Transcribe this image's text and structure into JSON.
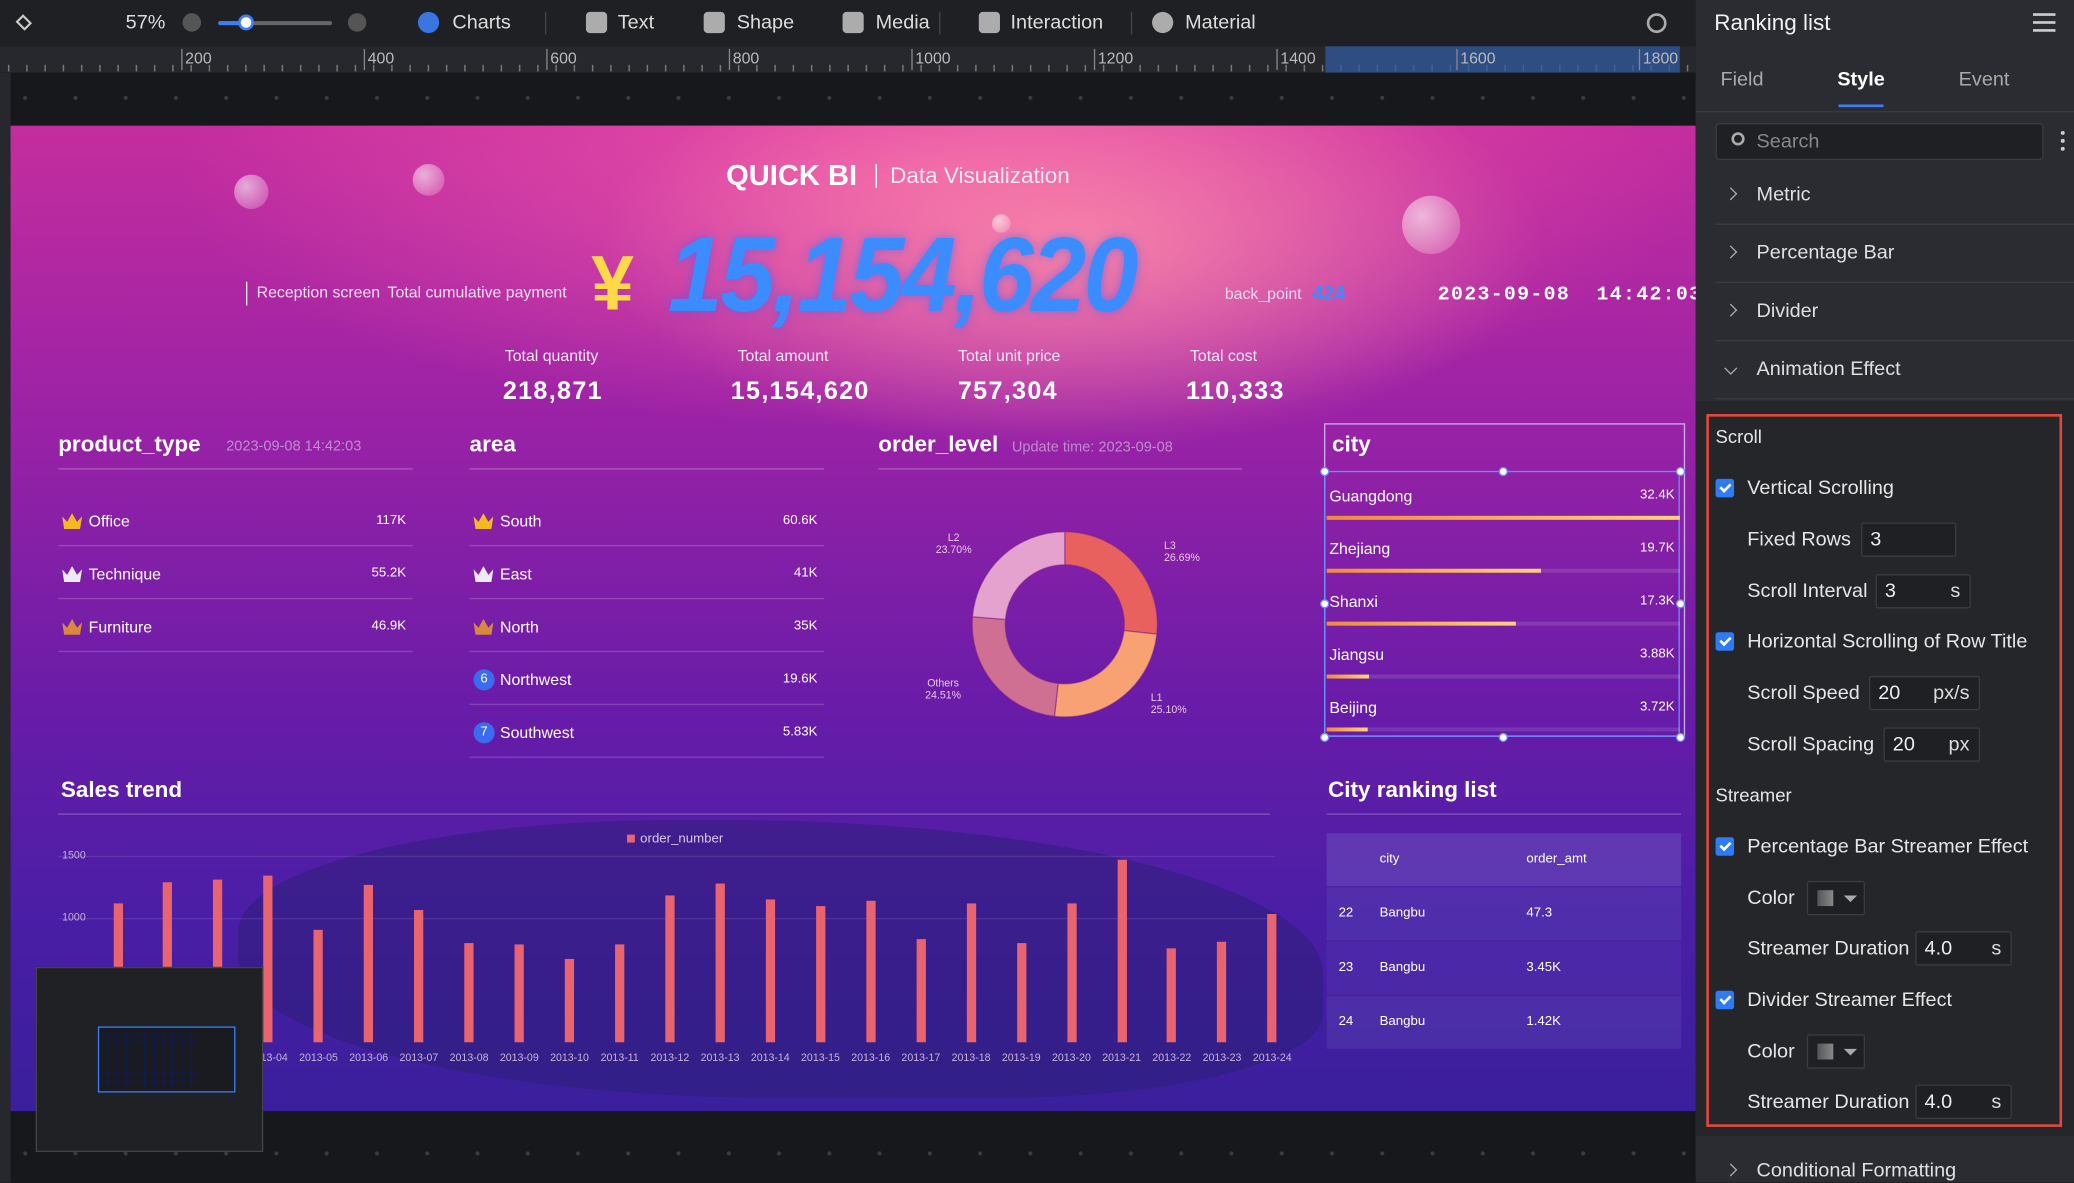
{
  "toolbar": {
    "zoom": "57%",
    "items": [
      "Charts",
      "Text",
      "Shape",
      "Media",
      "Interaction",
      "Material"
    ]
  },
  "ruler": [
    "200",
    "400",
    "600",
    "800",
    "1000",
    "1200",
    "1400",
    "1600",
    "1800"
  ],
  "dashboard": {
    "brand": "QUICK BI",
    "subtitle": "Data Visualization",
    "reception": "Reception screen",
    "payment_label": "Total cumulative payment",
    "currency": "¥",
    "payment": "15,154,620",
    "back_point": {
      "label": "back_point",
      "value": "424"
    },
    "datetime": "2023-09-08  14:42:03",
    "kpis": [
      {
        "label": "Total quantity",
        "value": "218,871"
      },
      {
        "label": "Total amount",
        "value": "15,154,620"
      },
      {
        "label": "Total unit price",
        "value": "757,304"
      },
      {
        "label": "Total cost",
        "value": "110,333"
      }
    ],
    "product_type": {
      "title": "product_type",
      "time": "2023-09-08 14:42:03",
      "rows": [
        {
          "name": "Office",
          "value": "117K"
        },
        {
          "name": "Technique",
          "value": "55.2K"
        },
        {
          "name": "Furniture",
          "value": "46.9K"
        }
      ]
    },
    "area": {
      "title": "area",
      "rows": [
        {
          "name": "South",
          "value": "60.6K"
        },
        {
          "name": "East",
          "value": "41K"
        },
        {
          "name": "North",
          "value": "35K"
        },
        {
          "rank": "6",
          "name": "Northwest",
          "value": "19.6K"
        },
        {
          "rank": "7",
          "name": "Southwest",
          "value": "5.83K"
        }
      ]
    },
    "order_level": {
      "title": "order_level",
      "update": "Update time: 2023-09-08",
      "segments": [
        {
          "name": "L3",
          "value": 26.69,
          "value_label": "26.69%",
          "color": "#e8615f"
        },
        {
          "name": "L1",
          "value": 25.1,
          "value_label": "25.10%",
          "color": "#f8a274"
        },
        {
          "name": "Others",
          "value": 24.51,
          "value_label": "24.51%",
          "color": "#cf6f92"
        },
        {
          "name": "L2",
          "value": 23.7,
          "value_label": "23.70%",
          "color": "#e6a2cf"
        }
      ]
    },
    "city": {
      "title": "city",
      "rows": [
        {
          "name": "Guangdong",
          "value": 32400,
          "value_label": "32.4K"
        },
        {
          "name": "Zhejiang",
          "value": 19700,
          "value_label": "19.7K"
        },
        {
          "name": "Shanxi",
          "value": 17300,
          "value_label": "17.3K"
        },
        {
          "name": "Jiangsu",
          "value": 3880,
          "value_label": "3.88K"
        },
        {
          "name": "Beijing",
          "value": 3720,
          "value_label": "3.72K"
        }
      ]
    },
    "sales_trend": {
      "title": "Sales trend",
      "legend": "order_number",
      "color": "#e8646e",
      "categories": [
        null,
        null,
        null,
        "2013-04",
        "2013-05",
        "2013-06",
        "2013-07",
        "2013-08",
        "2013-09",
        "2013-10",
        "2013-11",
        "2013-12",
        "2013-13",
        "2013-14",
        "2013-15",
        "2013-16",
        "2013-17",
        "2013-18",
        "2013-19",
        "2013-20",
        "2013-21",
        "2013-22",
        "2013-23",
        "2013-24"
      ],
      "values": [
        1120,
        1290,
        1310,
        1340,
        900,
        1270,
        1060,
        800,
        790,
        670,
        790,
        1180,
        1280,
        1150,
        1100,
        1140,
        830,
        1120,
        800,
        1120,
        1470,
        760,
        810,
        1030
      ],
      "ylim": [
        0,
        1500
      ],
      "yticks": [
        1000,
        1500
      ]
    },
    "ranking": {
      "title": "City ranking list",
      "columns": [
        "city",
        "order_amt"
      ],
      "rows": [
        [
          "22",
          "Bangbu",
          "47.3"
        ],
        [
          "23",
          "Bangbu",
          "3.45K"
        ],
        [
          "24",
          "Bangbu",
          "1.42K"
        ]
      ]
    }
  },
  "panel": {
    "title": "Ranking list",
    "tabs": [
      "Field",
      "Style",
      "Event"
    ],
    "search": "Search",
    "sections": [
      "Metric",
      "Percentage Bar",
      "Divider",
      "Animation Effect"
    ],
    "settings": {
      "scroll_title": "Scroll",
      "vertical": "Vertical Scrolling",
      "fixed_rows": {
        "label": "Fixed Rows",
        "value": "3"
      },
      "scroll_interval": {
        "label": "Scroll Interval",
        "value": "3",
        "unit": "s"
      },
      "horizontal": "Horizontal Scrolling of Row Title",
      "scroll_speed": {
        "label": "Scroll Speed",
        "value": "20",
        "unit": "px/s"
      },
      "scroll_spacing": {
        "label": "Scroll Spacing",
        "value": "20",
        "unit": "px"
      },
      "streamer_title": "Streamer",
      "bar_streamer": "Percentage Bar Streamer Effect",
      "bar_color": "Color",
      "bar_duration": {
        "label": "Streamer Duration",
        "value": "4.0",
        "unit": "s"
      },
      "divider_streamer": "Divider Streamer Effect",
      "divider_color": "Color",
      "divider_duration": {
        "label": "Streamer Duration",
        "value": "4.0",
        "unit": "s"
      }
    },
    "footer": "Conditional Formatting"
  }
}
